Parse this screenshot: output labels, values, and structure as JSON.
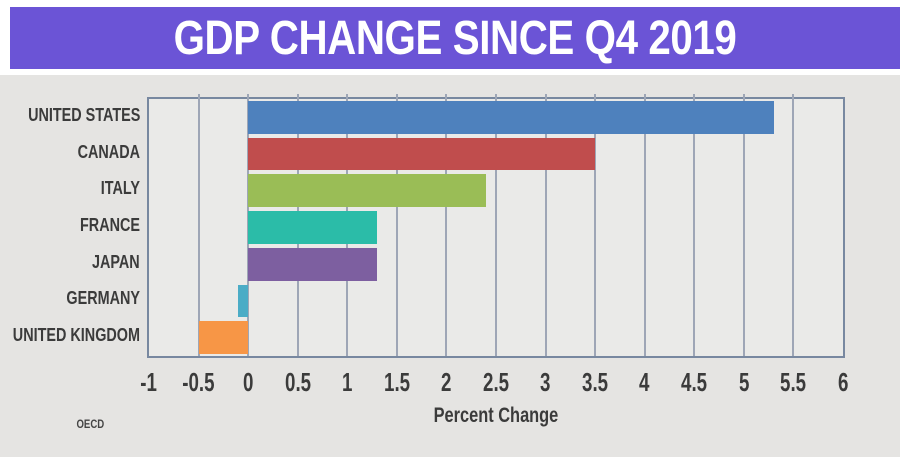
{
  "page": {
    "title": "GDP CHANGE SINCE Q4 2019",
    "source": "OECD"
  },
  "colors": {
    "canvas_bg": "#FFFFFF",
    "header_bg": "#6B54D6",
    "title_text": "#FFFFFF",
    "panel_bg": "#E5E4E2",
    "plot_bg": "#EAEAE8",
    "plot_border": "#7888A0",
    "gridline": "#9EA6B6",
    "label_text": "#3B3B3B"
  },
  "chart_data": {
    "type": "bar",
    "orientation": "horizontal",
    "title": "GDP CHANGE SINCE Q4 2019",
    "categories": [
      "UNITED STATES",
      "CANADA",
      "ITALY",
      "FRANCE",
      "JAPAN",
      "GERMANY",
      "UNITED KINGDOM"
    ],
    "values": [
      5.3,
      3.5,
      2.4,
      1.3,
      1.3,
      -0.1,
      -0.5
    ],
    "bar_colors": [
      "#4E81BD",
      "#C04D4D",
      "#9ABD56",
      "#2BBCA8",
      "#7D5FA0",
      "#4BACC6",
      "#F79646"
    ],
    "xlabel": "Percent Change",
    "xlim": [
      -1,
      6
    ],
    "xticks": [
      -1,
      -0.5,
      0,
      0.5,
      1,
      1.5,
      2,
      2.5,
      3,
      3.5,
      4,
      4.5,
      5,
      5.5,
      6
    ],
    "xtick_labels": [
      "-1",
      "-0.5",
      "0",
      "0.5",
      "1",
      "1.5",
      "2",
      "2.5",
      "3",
      "3.5",
      "4",
      "4.5",
      "5",
      "5.5",
      "6"
    ],
    "grid": true,
    "gridlines_at": [
      -0.5,
      0,
      0.5,
      1,
      1.5,
      2,
      2.5,
      3,
      3.5,
      4,
      4.5,
      5,
      5.5
    ],
    "legend": false,
    "source": "OECD"
  }
}
